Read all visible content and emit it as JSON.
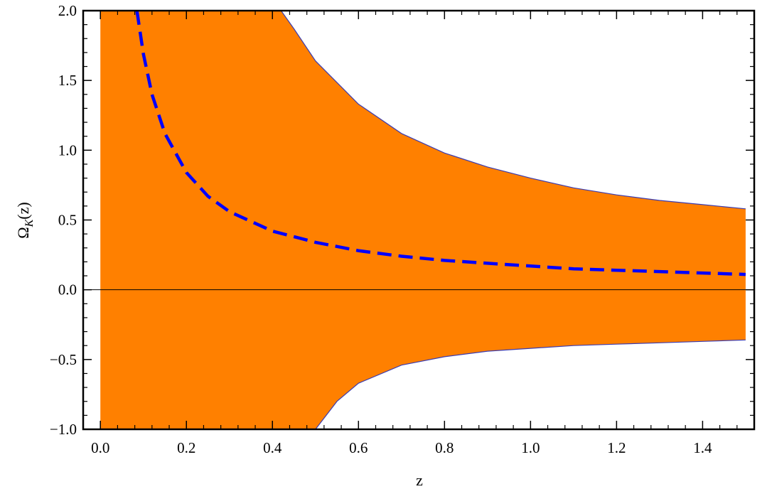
{
  "chart_data": {
    "type": "area",
    "title": "",
    "xlabel": "z",
    "ylabel": "ΩK(z)",
    "ylabel_main": "Ω",
    "ylabel_sub": "K",
    "ylabel_arg": "(z)",
    "xlim": [
      -0.04,
      1.52
    ],
    "ylim": [
      -1.0,
      2.0
    ],
    "grid": false,
    "legend": "none",
    "x_ticks": [
      0.0,
      0.2,
      0.4,
      0.6,
      0.8,
      1.0,
      1.2,
      1.4
    ],
    "x_tick_labels": [
      "0.0",
      "0.2",
      "0.4",
      "0.6",
      "0.8",
      "1.0",
      "1.2",
      "1.4"
    ],
    "y_ticks": [
      -1.0,
      -0.5,
      0.0,
      0.5,
      1.0,
      1.5,
      2.0
    ],
    "y_tick_labels": [
      "−1.0",
      "−0.5",
      "0.0",
      "0.5",
      "1.0",
      "1.5",
      "2.0"
    ],
    "band_x_range": [
      0.0,
      1.5
    ],
    "series": [
      {
        "role": "upper-bound",
        "x": [
          0.42,
          0.45,
          0.5,
          0.6,
          0.7,
          0.8,
          0.9,
          1.0,
          1.1,
          1.2,
          1.3,
          1.4,
          1.5
        ],
        "y": [
          2.0,
          1.87,
          1.64,
          1.33,
          1.12,
          0.98,
          0.88,
          0.8,
          0.73,
          0.68,
          0.64,
          0.61,
          0.58
        ]
      },
      {
        "role": "lower-bound",
        "x": [
          0.5,
          0.55,
          0.6,
          0.7,
          0.8,
          0.9,
          1.0,
          1.1,
          1.2,
          1.3,
          1.4,
          1.5
        ],
        "y": [
          -1.0,
          -0.8,
          -0.67,
          -0.54,
          -0.48,
          -0.44,
          -0.42,
          -0.4,
          -0.39,
          -0.38,
          -0.37,
          -0.36
        ]
      },
      {
        "role": "central-estimate",
        "style": "dashed",
        "x": [
          0.085,
          0.1,
          0.12,
          0.15,
          0.2,
          0.25,
          0.3,
          0.4,
          0.5,
          0.6,
          0.7,
          0.8,
          0.9,
          1.0,
          1.1,
          1.2,
          1.3,
          1.4,
          1.5
        ],
        "y": [
          2.0,
          1.69,
          1.4,
          1.12,
          0.84,
          0.67,
          0.56,
          0.42,
          0.34,
          0.28,
          0.24,
          0.21,
          0.19,
          0.17,
          0.15,
          0.14,
          0.13,
          0.12,
          0.11
        ]
      }
    ],
    "colors": {
      "band_fill": "#ff8000",
      "band_edge": "#3b3bb0",
      "central_line": "#0000ff",
      "zero_line": "#000000",
      "frame": "#000000"
    }
  }
}
